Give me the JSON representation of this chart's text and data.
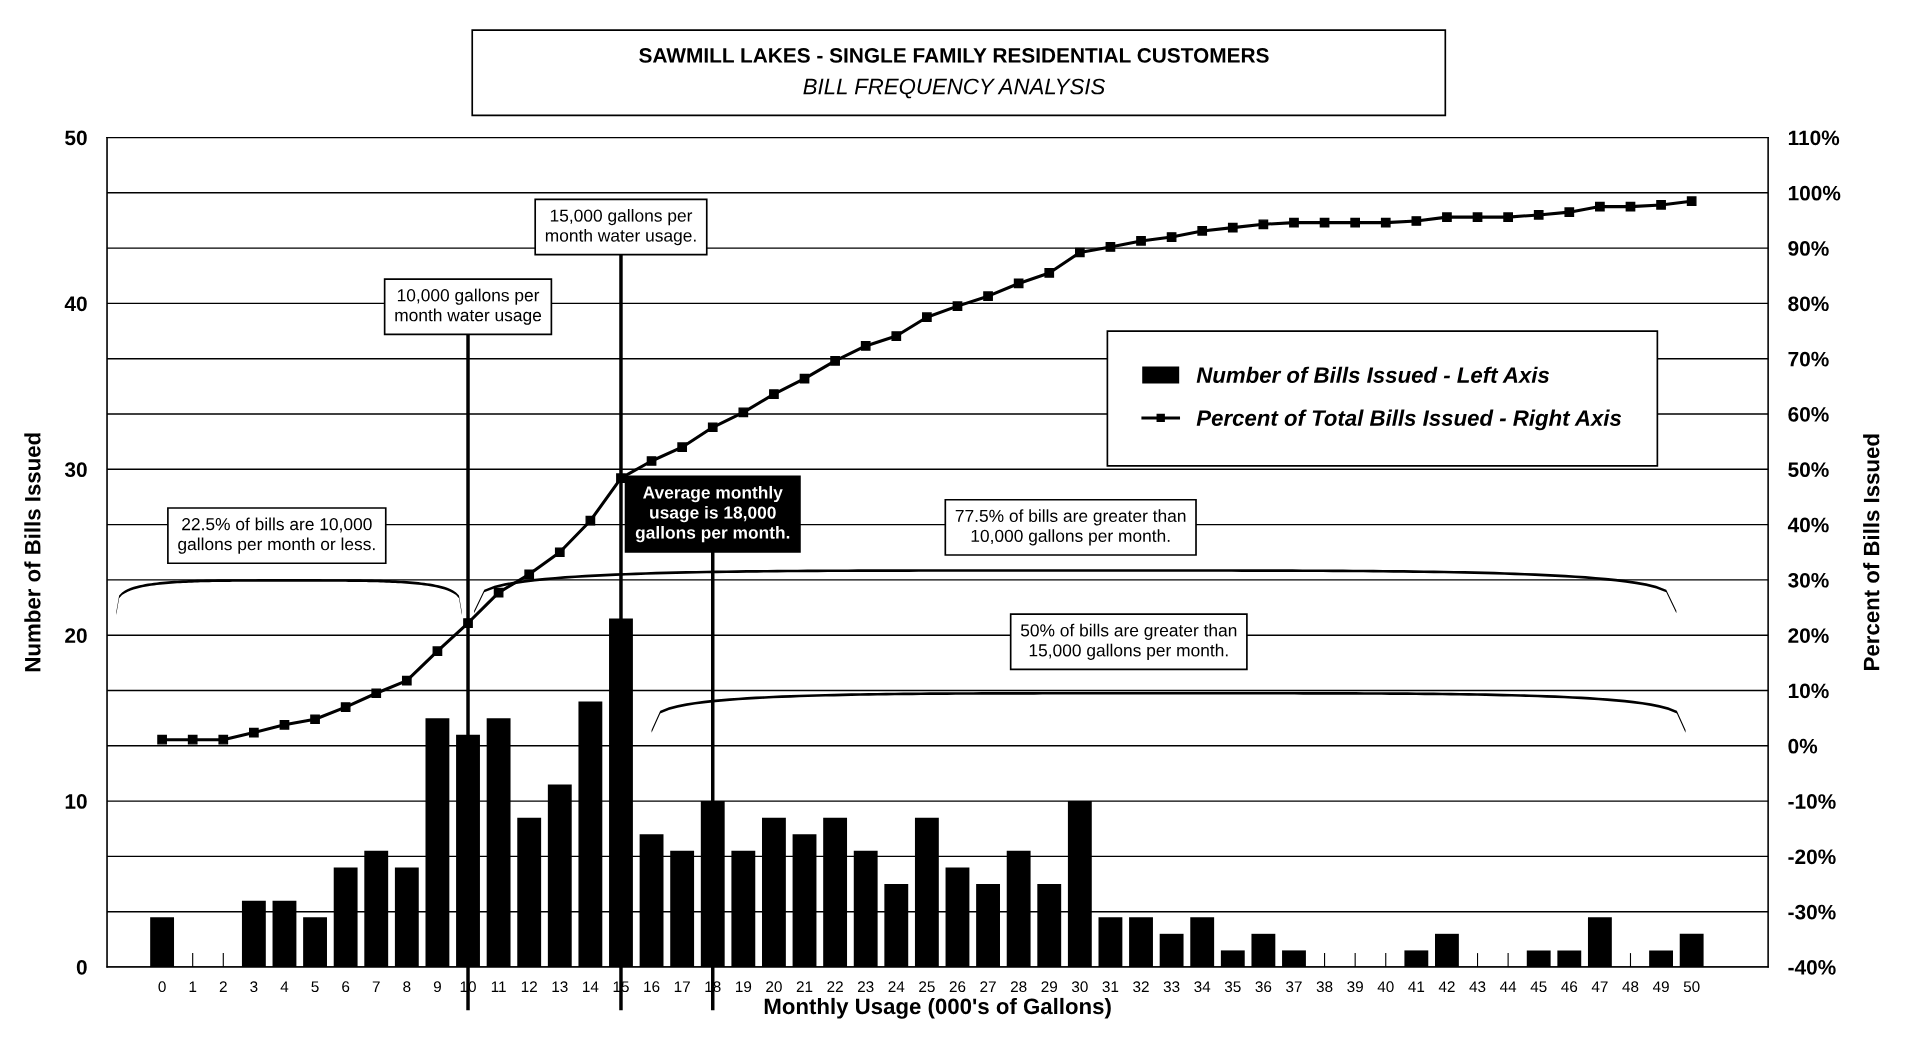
{
  "chart_data": {
    "type": "bar",
    "title": "SAWMILL LAKES - SINGLE FAMILY RESIDENTIAL CUSTOMERS",
    "subtitle": "BILL FREQUENCY ANALYSIS",
    "xlabel": "Monthly Usage (000's of Gallons)",
    "ylabel": "Number of Bills Issued",
    "y2label": "Percent of Bills Issued",
    "categories": [
      "0",
      "1",
      "2",
      "3",
      "4",
      "5",
      "6",
      "7",
      "8",
      "9",
      "10",
      "11",
      "12",
      "13",
      "14",
      "15",
      "16",
      "17",
      "18",
      "19",
      "20",
      "21",
      "22",
      "23",
      "24",
      "25",
      "26",
      "27",
      "28",
      "29",
      "30",
      "31",
      "32",
      "33",
      "34",
      "35",
      "36",
      "37",
      "38",
      "39",
      "40",
      "41",
      "42",
      "43",
      "44",
      "45",
      "46",
      "47",
      "48",
      "49",
      "50"
    ],
    "series": [
      {
        "name": "Number of Bills Issued - Left Axis",
        "color": "#000000",
        "values": [
          3,
          0,
          0,
          4,
          4,
          3,
          6,
          7,
          6,
          15,
          14,
          15,
          9,
          11,
          16,
          21,
          8,
          7,
          10,
          7,
          9,
          8,
          9,
          7,
          5,
          9,
          6,
          5,
          7,
          5,
          10,
          3,
          3,
          2,
          3,
          1,
          2,
          1,
          0,
          0,
          0,
          1,
          2,
          0,
          0,
          1,
          1,
          3,
          0,
          1,
          2
        ]
      },
      {
        "name": "Percent of Total Bills Issued - Right Axis",
        "type": "line",
        "axis": "y2",
        "color": "#000000",
        "marker": "square",
        "values": [
          1.1,
          1.1,
          1.1,
          2.4,
          3.8,
          4.8,
          7.0,
          9.5,
          11.8,
          17.1,
          22.2,
          27.7,
          31.0,
          35.0,
          40.7,
          48.4,
          51.5,
          54.0,
          57.6,
          60.3,
          63.6,
          66.4,
          69.6,
          72.3,
          74.1,
          77.5,
          79.5,
          81.3,
          83.6,
          85.5,
          89.2,
          90.2,
          91.3,
          92.0,
          93.1,
          93.7,
          94.3,
          94.6,
          94.6,
          94.6,
          94.6,
          94.9,
          95.6,
          95.6,
          95.6,
          96.0,
          96.5,
          97.5,
          97.5,
          97.8,
          98.5
        ]
      }
    ],
    "ylim": [
      0,
      50
    ],
    "yticks": [
      0,
      10,
      20,
      30,
      40,
      50
    ],
    "y2lim": [
      -40,
      110
    ],
    "y2ticks": [
      {
        "value": -40,
        "label": "-40%"
      },
      {
        "value": -30,
        "label": "-30%"
      },
      {
        "value": -20,
        "label": "-20%"
      },
      {
        "value": -10,
        "label": "-10%"
      },
      {
        "value": 0,
        "label": "0%"
      },
      {
        "value": 10,
        "label": "10%"
      },
      {
        "value": 20,
        "label": "20%"
      },
      {
        "value": 30,
        "label": "30%"
      },
      {
        "value": 40,
        "label": "40%"
      },
      {
        "value": 50,
        "label": "50%"
      },
      {
        "value": 60,
        "label": "60%"
      },
      {
        "value": 70,
        "label": "70%"
      },
      {
        "value": 80,
        "label": "80%"
      },
      {
        "value": 90,
        "label": "90%"
      },
      {
        "value": 100,
        "label": "100%"
      },
      {
        "value": 110,
        "label": "110%"
      }
    ],
    "ref_lines": [
      {
        "axis": "x",
        "value": "10",
        "label": "10,000 gallons per\nmonth water usage"
      },
      {
        "axis": "x",
        "value": "15",
        "label": "15,000 gallons per\nmonth water usage."
      },
      {
        "axis": "x",
        "value": "18",
        "label": "Average monthly\nusage is 18,000\ngallons per month."
      }
    ],
    "annotations": [
      "22.5% of bills are 10,000\ngallons per month or less.",
      "77.5% of bills are greater than\n10,000 gallons per month.",
      "50% of bills are greater than\n15,000 gallons per month."
    ],
    "grid": "y",
    "legend": "top right"
  }
}
